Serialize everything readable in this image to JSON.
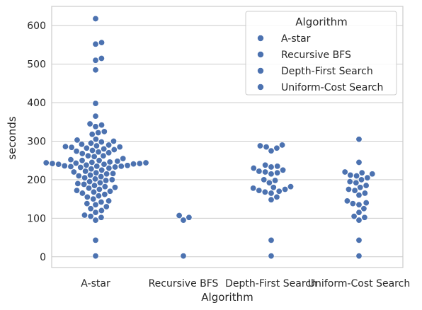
{
  "chart_data": {
    "type": "scatter",
    "style": "swarm",
    "xlabel": "Algorithm",
    "ylabel": "seconds",
    "categories": [
      "A-star",
      "Recursive BFS",
      "Depth-First Search",
      "Uniform-Cost Search"
    ],
    "ylim": [
      -28,
      650
    ],
    "yticks": [
      0,
      100,
      200,
      300,
      400,
      500,
      600
    ],
    "grid": true,
    "point_color": "#4c72b0",
    "legend": {
      "title": "Algorithm",
      "placement": "top-right",
      "entries": [
        "A-star",
        "Recursive BFS",
        "Depth-First Search",
        "Uniform-Cost Search"
      ]
    },
    "series": [
      {
        "name": "A-star",
        "values": [
          618,
          556,
          552,
          515,
          510,
          485,
          398,
          365,
          345,
          342,
          338,
          325,
          322,
          318,
          305,
          303,
          300,
          298,
          295,
          292,
          290,
          288,
          286,
          285,
          284,
          282,
          280,
          278,
          276,
          274,
          272,
          270,
          268,
          262,
          262,
          260,
          255,
          252,
          250,
          250,
          248,
          246,
          245,
          244,
          244,
          243,
          242,
          242,
          241,
          240,
          240,
          238,
          237,
          236,
          235,
          235,
          234,
          233,
          232,
          230,
          228,
          225,
          222,
          220,
          218,
          216,
          215,
          212,
          210,
          208,
          205,
          202,
          200,
          198,
          195,
          192,
          190,
          188,
          185,
          182,
          180,
          178,
          175,
          172,
          170,
          168,
          165,
          162,
          158,
          155,
          150,
          145,
          142,
          138,
          135,
          130,
          125,
          120,
          115,
          108,
          105,
          102,
          95,
          43,
          2
        ]
      },
      {
        "name": "Recursive BFS",
        "values": [
          107,
          102,
          95,
          2
        ]
      },
      {
        "name": "Depth-First Search",
        "values": [
          290,
          288,
          285,
          282,
          275,
          238,
          235,
          233,
          230,
          225,
          222,
          220,
          218,
          215,
          200,
          198,
          192,
          182,
          180,
          178,
          175,
          172,
          170,
          168,
          165,
          155,
          148,
          43,
          2
        ]
      },
      {
        "name": "Uniform-Cost Search",
        "values": [
          305,
          245,
          220,
          218,
          215,
          212,
          210,
          205,
          200,
          195,
          192,
          185,
          180,
          175,
          172,
          165,
          160,
          145,
          140,
          138,
          135,
          125,
          115,
          105,
          102,
          95,
          43,
          2
        ]
      }
    ]
  }
}
